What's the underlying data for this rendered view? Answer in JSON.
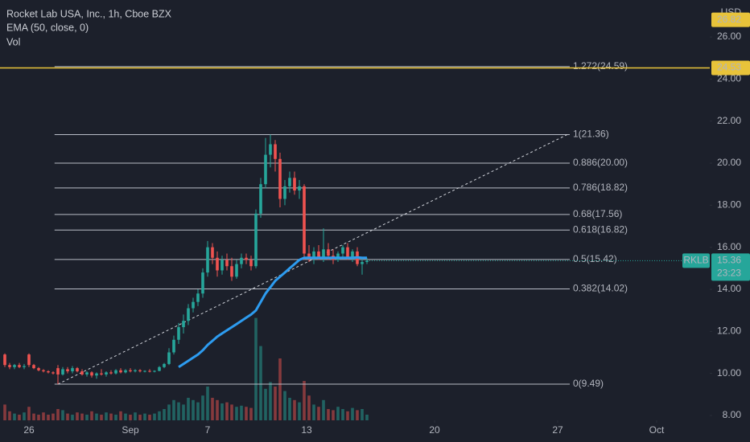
{
  "chart_data": {
    "type": "candlestick",
    "title": "Rocket Lab USA, Inc., 1h, Cboe BZX",
    "indicators": [
      "EMA (50, close, 0)",
      "Vol"
    ],
    "currency": "USD",
    "symbol": "RKLB",
    "last_price": 15.36,
    "countdown": "23:23",
    "top_tag": 26.82,
    "hline": {
      "value": 24.53,
      "color": "#e8c33a"
    },
    "up_color": "#26a69a",
    "down_color": "#ef5350",
    "ema_color": "#2d9cf0",
    "fib_color": "#b8bcc6",
    "trend_color": "#d0d3da",
    "background": "#1c202b",
    "xlim": [
      -1,
      146
    ],
    "ylim": [
      7.77,
      27.76
    ],
    "vlim": [
      0,
      100
    ],
    "xticks": [
      {
        "value": 5,
        "label": "26"
      },
      {
        "value": 26,
        "label": "Sep"
      },
      {
        "value": 42,
        "label": "7"
      },
      {
        "value": 62.5,
        "label": "13"
      },
      {
        "value": 89,
        "label": "20"
      },
      {
        "value": 114.5,
        "label": "27"
      },
      {
        "value": 135,
        "label": "Oct"
      }
    ],
    "yticks": [
      {
        "value": 8,
        "label": "8.00"
      },
      {
        "value": 10,
        "label": "10.00"
      },
      {
        "value": 12,
        "label": "12.00"
      },
      {
        "value": 14,
        "label": "14.00"
      },
      {
        "value": 16,
        "label": "16.00"
      },
      {
        "value": 18,
        "label": "18.00"
      },
      {
        "value": 20,
        "label": "20.00"
      },
      {
        "value": 22,
        "label": "22.00"
      },
      {
        "value": 24,
        "label": "24.00"
      },
      {
        "value": 26,
        "label": "26.00"
      }
    ],
    "open": [
      10.9,
      10.4,
      10.3,
      10.4,
      10.3,
      10.9,
      10.4,
      10.25,
      10.15,
      10.1,
      10.05,
      10.25,
      9.95,
      10.2,
      10.1,
      10.25,
      10.1,
      9.95,
      10.05,
      9.9,
      10.0,
      9.95,
      10.05,
      10.0,
      10.15,
      10.05,
      10.15,
      10.1,
      10.15,
      10.1,
      10.12,
      10.1,
      10.12,
      10.3,
      10.45,
      11.0,
      11.6,
      12.2,
      12.5,
      13.1,
      13.4,
      13.8,
      14.8,
      16.0,
      15.5,
      14.9,
      15.4,
      15.1,
      14.6,
      15.2,
      15.5,
      15.4,
      15.1,
      17.6,
      19.0,
      20.4,
      20.9,
      20.2,
      18.3,
      18.9,
      19.3,
      18.7,
      18.9,
      15.7,
      15.5,
      15.8,
      15.5,
      15.9,
      15.6,
      15.4,
      15.7,
      16.0,
      15.5,
      15.8,
      15.2,
      15.3
    ],
    "high": [
      10.95,
      10.5,
      10.45,
      10.5,
      10.45,
      10.95,
      10.45,
      10.3,
      10.2,
      10.15,
      10.1,
      10.4,
      10.3,
      10.3,
      10.35,
      10.3,
      10.2,
      10.1,
      10.1,
      10.05,
      10.2,
      10.1,
      10.15,
      10.2,
      10.25,
      10.2,
      10.25,
      10.2,
      10.2,
      10.15,
      10.2,
      10.15,
      10.35,
      10.5,
      11.2,
      11.8,
      12.4,
      12.8,
      13.3,
      13.6,
      14.0,
      15.0,
      16.3,
      16.2,
      15.8,
      15.6,
      15.7,
      15.5,
      15.4,
      15.7,
      15.7,
      15.6,
      17.8,
      19.3,
      21.2,
      21.36,
      21.1,
      20.5,
      19.2,
      19.6,
      19.6,
      19.2,
      19.0,
      16.1,
      16.0,
      16.1,
      16.9,
      16.2,
      15.9,
      15.8,
      16.1,
      16.2,
      15.9,
      16.0,
      15.5,
      15.5
    ],
    "low": [
      10.3,
      10.2,
      10.2,
      10.25,
      10.2,
      10.3,
      10.2,
      10.1,
      10.05,
      10.0,
      9.95,
      9.49,
      9.9,
      10.0,
      10.0,
      10.05,
      9.9,
      9.85,
      9.8,
      9.75,
      9.9,
      9.85,
      9.95,
      9.95,
      10.0,
      10.0,
      10.05,
      10.05,
      10.05,
      10.05,
      10.05,
      10.05,
      10.1,
      10.25,
      10.4,
      10.9,
      11.4,
      11.9,
      12.3,
      12.9,
      13.2,
      13.6,
      14.6,
      15.2,
      14.6,
      14.7,
      14.9,
      14.4,
      14.5,
      15.0,
      15.2,
      14.9,
      15.0,
      17.4,
      18.8,
      19.8,
      19.6,
      17.9,
      18.0,
      18.6,
      18.5,
      18.3,
      15.4,
      15.3,
      15.2,
      15.4,
      15.3,
      15.4,
      15.2,
      15.3,
      15.5,
      15.4,
      15.3,
      15.1,
      14.7,
      15.2
    ],
    "close": [
      10.4,
      10.3,
      10.4,
      10.3,
      10.35,
      10.4,
      10.25,
      10.15,
      10.1,
      10.05,
      10.0,
      9.95,
      10.2,
      10.1,
      10.25,
      10.1,
      9.95,
      10.05,
      9.9,
      10.0,
      9.95,
      10.05,
      10.0,
      10.15,
      10.05,
      10.15,
      10.1,
      10.15,
      10.1,
      10.12,
      10.1,
      10.12,
      10.3,
      10.45,
      11.0,
      11.6,
      12.2,
      12.5,
      13.1,
      13.4,
      13.8,
      14.8,
      16.0,
      15.5,
      14.9,
      15.4,
      15.1,
      14.6,
      15.2,
      15.5,
      15.4,
      15.1,
      17.6,
      19.0,
      20.4,
      20.9,
      20.2,
      18.3,
      18.9,
      19.3,
      18.7,
      18.9,
      15.7,
      15.5,
      15.8,
      15.5,
      15.9,
      15.6,
      15.4,
      15.7,
      16.0,
      15.5,
      15.8,
      15.2,
      15.3,
      15.36
    ],
    "volume": [
      14,
      8,
      6,
      5,
      7,
      12,
      6,
      5,
      7,
      5,
      6,
      10,
      9,
      6,
      5,
      7,
      6,
      5,
      8,
      6,
      5,
      7,
      6,
      5,
      8,
      6,
      5,
      7,
      5,
      6,
      5,
      6,
      8,
      10,
      14,
      18,
      16,
      14,
      20,
      18,
      16,
      22,
      30,
      20,
      18,
      15,
      16,
      14,
      12,
      13,
      12,
      11,
      91,
      66,
      28,
      34,
      30,
      55,
      26,
      20,
      18,
      16,
      35,
      22,
      14,
      12,
      18,
      10,
      9,
      12,
      10,
      8,
      11,
      9,
      10,
      5
    ],
    "ema": [
      null,
      null,
      null,
      null,
      null,
      null,
      null,
      null,
      null,
      null,
      null,
      null,
      null,
      null,
      null,
      null,
      null,
      null,
      null,
      null,
      null,
      null,
      null,
      null,
      null,
      null,
      null,
      null,
      null,
      null,
      null,
      null,
      null,
      null,
      null,
      null,
      10.3,
      10.45,
      10.6,
      10.75,
      10.9,
      11.1,
      11.35,
      11.55,
      11.75,
      11.9,
      12.05,
      12.2,
      12.35,
      12.5,
      12.65,
      12.8,
      13.0,
      13.4,
      13.8,
      14.1,
      14.4,
      14.6,
      14.8,
      15.0,
      15.2,
      15.4,
      15.5,
      15.5,
      15.5,
      15.5,
      15.5,
      15.5,
      15.5,
      15.5,
      15.5,
      15.5,
      15.5,
      15.52,
      15.5,
      15.5
    ],
    "trend_line": {
      "x": [
        11,
        116.5
      ],
      "y": [
        9.49,
        21.36
      ]
    },
    "fib_x": [
      10.3,
      117
    ],
    "fib_levels": [
      {
        "value": 9.49,
        "label": "0(9.49)"
      },
      {
        "value": 14.02,
        "label": "0.382(14.02)"
      },
      {
        "value": 15.42,
        "label": "0.5(15.42)"
      },
      {
        "value": 16.82,
        "label": "0.618(16.82)"
      },
      {
        "value": 17.56,
        "label": "0.68(17.56)"
      },
      {
        "value": 18.82,
        "label": "0.786(18.82)"
      },
      {
        "value": 20.0,
        "label": "0.886(20.00)"
      },
      {
        "value": 21.36,
        "label": "1(21.36)"
      },
      {
        "value": 24.59,
        "label": "1.272(24.59)"
      }
    ]
  }
}
